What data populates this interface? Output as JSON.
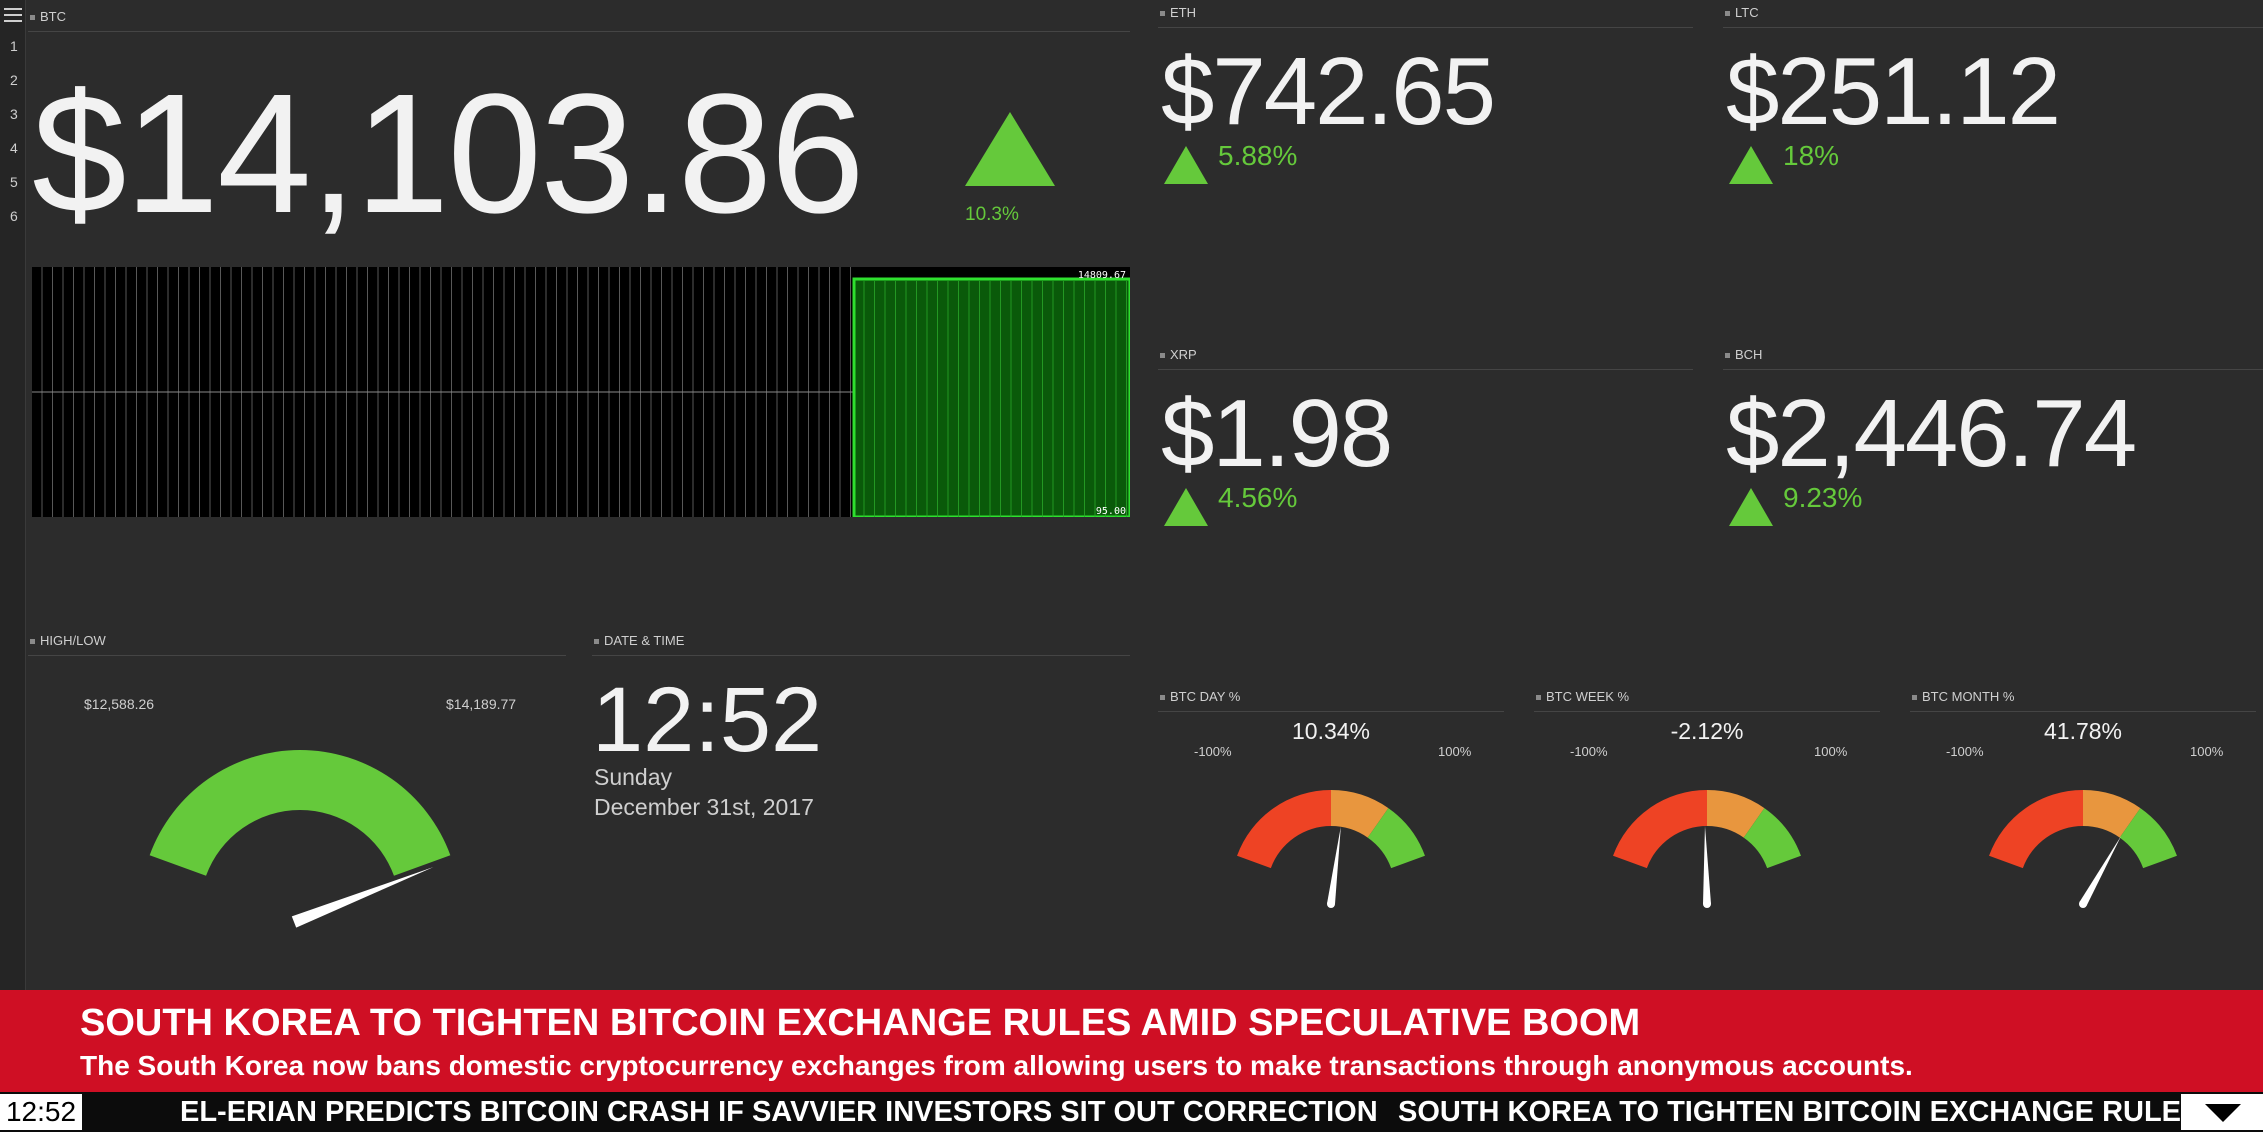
{
  "btc": {
    "label": "BTC",
    "price": "$14,103.86",
    "change": "10.3%",
    "chart_high": "14809.67",
    "chart_low": "95.00",
    "row_numbers": [
      "1",
      "2",
      "3",
      "4",
      "5",
      "6"
    ]
  },
  "coins": [
    {
      "label": "ETH",
      "price": "$742.65",
      "change": "5.88%"
    },
    {
      "label": "LTC",
      "price": "$251.12",
      "change": "18%"
    },
    {
      "label": "XRP",
      "price": "$1.98",
      "change": "4.56%"
    },
    {
      "label": "BCH",
      "price": "$2,446.74",
      "change": "9.23%"
    }
  ],
  "highlow": {
    "label": "HIGH/LOW",
    "low": "$12,588.26",
    "high": "$14,189.77",
    "low_value": 12588.26,
    "high_value": 14189.77,
    "current_value": 14103.86
  },
  "datetime": {
    "label": "DATE & TIME",
    "time": "12:52",
    "day": "Sunday",
    "date": "December 31st, 2017"
  },
  "gauges": [
    {
      "label": "BTC DAY %",
      "value": "10.34%",
      "value_num": 10.34,
      "min": "-100%",
      "max": "100%"
    },
    {
      "label": "BTC WEEK %",
      "value": "-2.12%",
      "value_num": -2.12,
      "min": "-100%",
      "max": "100%"
    },
    {
      "label": "BTC MONTH %",
      "value": "41.78%",
      "value_num": 41.78,
      "min": "-100%",
      "max": "100%"
    }
  ],
  "ticker": {
    "headline": "SOUTH KOREA TO TIGHTEN BITCOIN EXCHANGE RULES AMID SPECULATIVE BOOM",
    "subline": "The South Korea now bans domestic cryptocurrency exchanges from allowing users to make transactions through anonymous accounts.",
    "clock": "12:52",
    "crawl_1": "EL-ERIAN PREDICTS BITCOIN CRASH IF SAVVIER INVESTORS SIT OUT CORRECTION",
    "crawl_2": "SOUTH KOREA TO TIGHTEN BITCOIN EXCHANGE RULES AI"
  },
  "colors": {
    "up": "#65c93b",
    "gauge_red": "#ee4324",
    "gauge_orange": "#e8963e",
    "gauge_green": "#65c93b",
    "ticker_red": "#cf0f24"
  }
}
